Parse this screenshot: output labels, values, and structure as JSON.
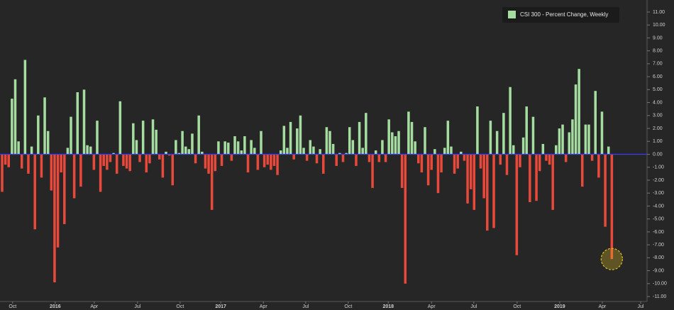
{
  "chart_data": {
    "type": "bar",
    "series": [
      {
        "name": "CSI 300 - Percent Change, Weekly",
        "color": "#a5dca0",
        "negative_color": "#e8493a",
        "values": [
          -2.9,
          -0.8,
          -1.0,
          4.3,
          5.8,
          1.0,
          -1.1,
          7.3,
          -1.5,
          0.6,
          -5.8,
          3.0,
          -1.8,
          4.4,
          1.8,
          -2.8,
          -9.9,
          -7.2,
          -1.4,
          -5.4,
          0.5,
          2.9,
          -3.4,
          4.8,
          -2.5,
          5.0,
          0.7,
          0.6,
          -1.2,
          2.6,
          -2.9,
          -0.9,
          -1.2,
          -0.6,
          0.1,
          -1.5,
          4.1,
          -0.9,
          -1.1,
          -1.3,
          2.4,
          1.1,
          -0.6,
          2.6,
          -1.4,
          -0.7,
          2.7,
          1.9,
          -0.4,
          -1.8,
          0.2,
          -0.1,
          -2.4,
          1.1,
          0.1,
          1.8,
          0.6,
          0.4,
          1.6,
          -0.7,
          3.0,
          0.2,
          -1.1,
          -1.5,
          -4.3,
          -1.3,
          1.0,
          -0.9,
          1.0,
          0.9,
          -0.5,
          1.4,
          1.0,
          0.3,
          1.4,
          -1.4,
          1.1,
          0.5,
          -1.2,
          1.8,
          -1.0,
          -0.8,
          -1.2,
          -0.9,
          -1.6,
          0.3,
          2.2,
          0.5,
          2.5,
          -0.4,
          2.0,
          3.0,
          0.5,
          -0.5,
          1.1,
          0.6,
          -0.7,
          0.4,
          -1.5,
          2.1,
          1.8,
          0.8,
          -0.9,
          0.1,
          -0.6,
          0.1,
          2.1,
          1.1,
          -0.9,
          2.5,
          0.5,
          3.2,
          -0.6,
          -2.6,
          0.3,
          -0.6,
          1.1,
          -0.6,
          2.7,
          1.7,
          1.4,
          1.8,
          -2.6,
          -10.0,
          3.3,
          2.5,
          1.0,
          -0.7,
          -1.4,
          2.1,
          -2.4,
          -1.2,
          0.4,
          -3.0,
          -1.4,
          0.5,
          2.6,
          0.6,
          -1.5,
          -1.1,
          0.2,
          -0.5,
          -3.8,
          -2.7,
          -4.3,
          3.7,
          -1.1,
          -3.4,
          -5.9,
          2.6,
          -5.7,
          1.8,
          -0.8,
          3.2,
          -1.6,
          5.2,
          0.7,
          -7.8,
          -1.0,
          1.3,
          3.7,
          -3.7,
          2.9,
          -3.6,
          -1.3,
          0.8,
          -0.5,
          -0.8,
          -4.3,
          0.7,
          2.0,
          2.3,
          -0.6,
          1.7,
          2.7,
          5.4,
          6.6,
          -2.5,
          2.3,
          2.3,
          -0.5,
          4.9,
          -1.8,
          3.3,
          -5.6,
          0.6,
          -8.1
        ]
      }
    ],
    "xlim": [
      -0.65,
      196.75
    ],
    "xticks": [
      {
        "value": 3.2,
        "label": "Oct"
      },
      {
        "value": 16.2,
        "label": "2016"
      },
      {
        "value": 28.1,
        "label": "Apr"
      },
      {
        "value": 41.3,
        "label": "Jul"
      },
      {
        "value": 54.3,
        "label": "Oct"
      },
      {
        "value": 66.7,
        "label": "2017"
      },
      {
        "value": 79.7,
        "label": "Apr"
      },
      {
        "value": 92.6,
        "label": "Jul"
      },
      {
        "value": 105.6,
        "label": "Oct"
      },
      {
        "value": 117.8,
        "label": "2018"
      },
      {
        "value": 131.0,
        "label": "Apr"
      },
      {
        "value": 143.9,
        "label": "Jul"
      },
      {
        "value": 157.1,
        "label": "Oct"
      },
      {
        "value": 170.1,
        "label": "2019"
      },
      {
        "value": 183.1,
        "label": "Apr"
      },
      {
        "value": 194.8,
        "label": "Jul"
      }
    ],
    "ylim": [
      -11.38,
      11.93
    ],
    "yticks": [
      {
        "value": 11,
        "label": "11.00"
      },
      {
        "value": 10,
        "label": "10.00"
      },
      {
        "value": 9,
        "label": "9.00"
      },
      {
        "value": 8,
        "label": "8.00"
      },
      {
        "value": 7,
        "label": "7.00"
      },
      {
        "value": 6,
        "label": "6.00"
      },
      {
        "value": 5,
        "label": "5.00"
      },
      {
        "value": 4,
        "label": "4.00"
      },
      {
        "value": 3,
        "label": "3.00"
      },
      {
        "value": 2,
        "label": "2.00"
      },
      {
        "value": 1,
        "label": "1.00"
      },
      {
        "value": 0,
        "label": "0.00"
      },
      {
        "value": -1,
        "label": "-1.00"
      },
      {
        "value": -2,
        "label": "-2.00"
      },
      {
        "value": -3,
        "label": "-3.00"
      },
      {
        "value": -4,
        "label": "-4.00"
      },
      {
        "value": -5,
        "label": "-5.00"
      },
      {
        "value": -6,
        "label": "-6.00"
      },
      {
        "value": -7,
        "label": "-7.00"
      },
      {
        "value": -8,
        "label": "-8.00"
      },
      {
        "value": -9,
        "label": "-9.00"
      },
      {
        "value": -10,
        "label": "-10.00"
      },
      {
        "value": -11,
        "label": "-11.00"
      }
    ],
    "zero_line_color": "#3a3aff",
    "highlight_color": "#e0c020",
    "legend": "top-right"
  }
}
